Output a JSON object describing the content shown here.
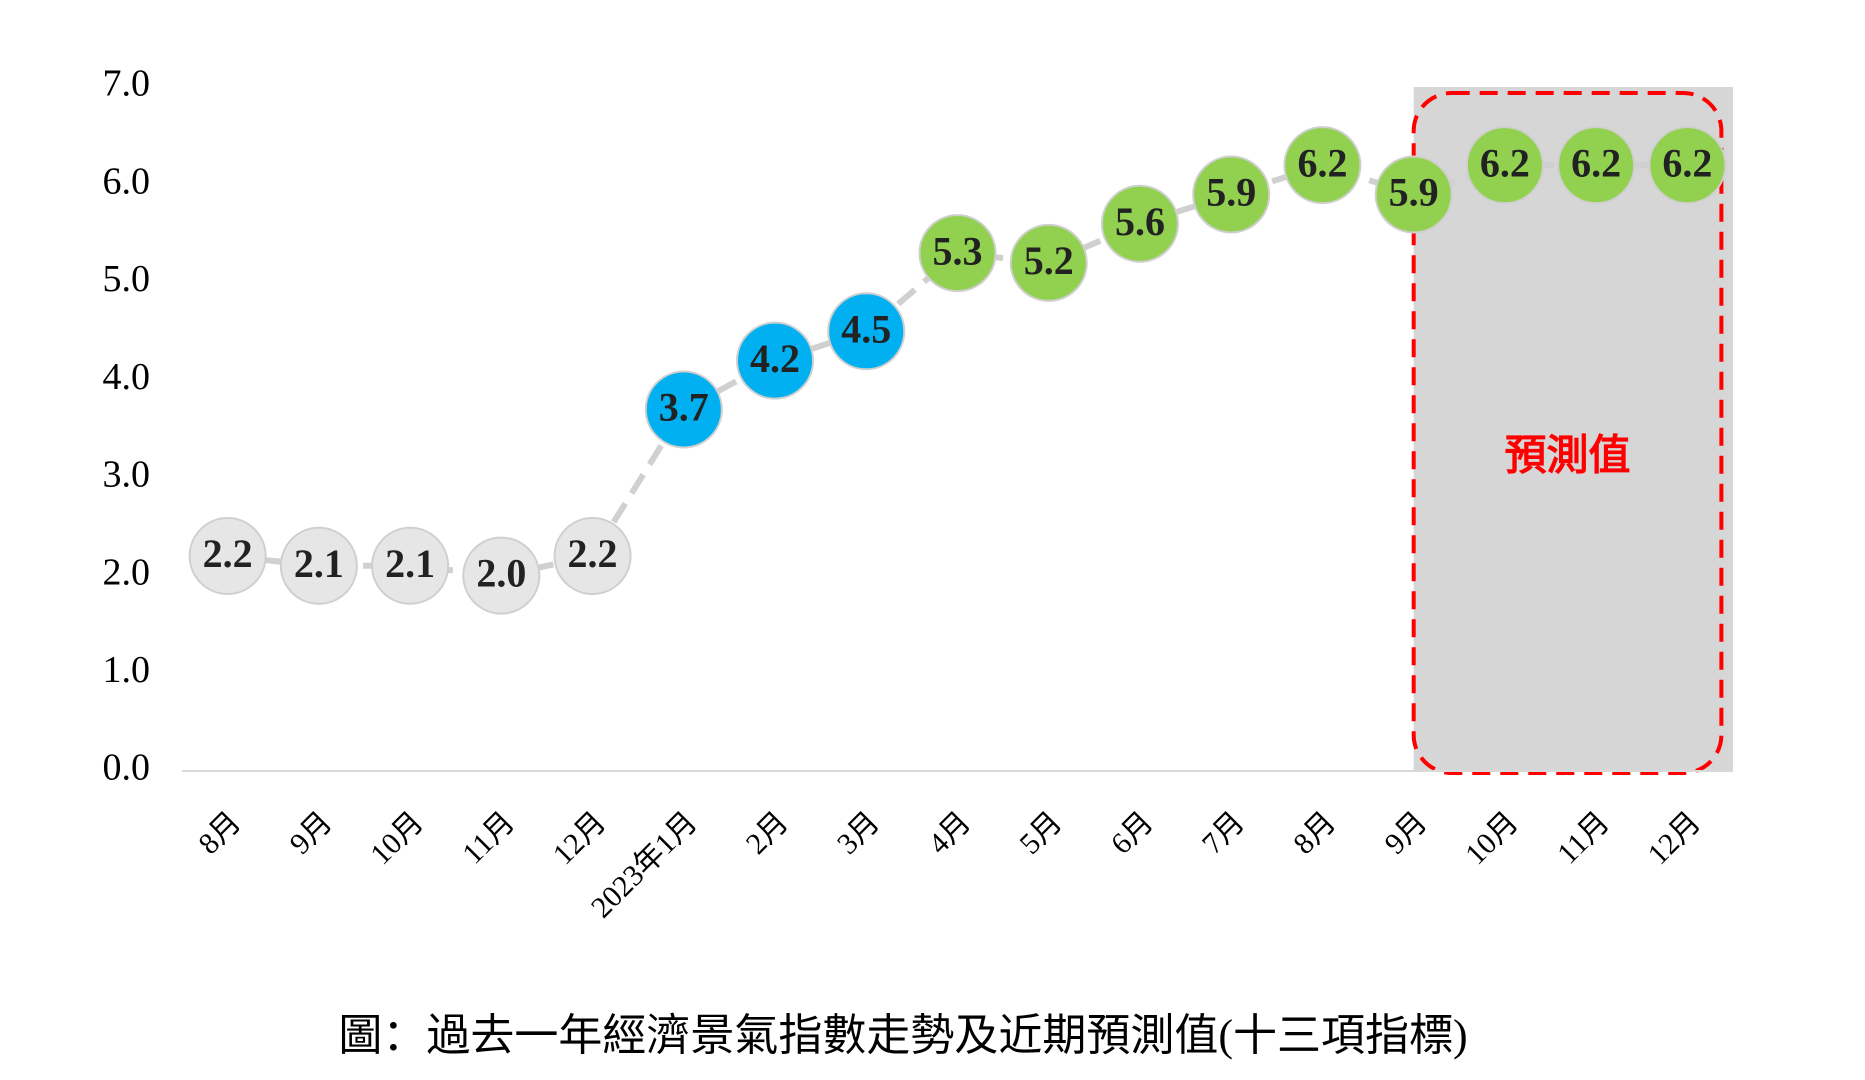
{
  "chart_data": {
    "type": "line",
    "caption": "圖：過去一年經濟景氣指數走勢及近期預測值(十三項指標)",
    "annotation": "預測值",
    "categories": [
      "8月",
      "9月",
      "10月",
      "11月",
      "12月",
      "2023年1月",
      "2月",
      "3月",
      "4月",
      "5月",
      "6月",
      "7月",
      "8月",
      "9月",
      "10月",
      "11月",
      "12月"
    ],
    "values": [
      2.2,
      2.1,
      2.1,
      2.0,
      2.2,
      3.7,
      4.2,
      4.5,
      5.3,
      5.2,
      5.6,
      5.9,
      6.2,
      5.9,
      6.2,
      6.2,
      6.2
    ],
    "value_labels": [
      "2.2",
      "2.1",
      "2.1",
      "2.0",
      "2.2",
      "3.7",
      "4.2",
      "4.5",
      "5.3",
      "5.2",
      "5.6",
      "5.9",
      "6.2",
      "5.9",
      "6.2",
      "6.2",
      "6.2"
    ],
    "point_colors": [
      "#e6e6e6",
      "#e6e6e6",
      "#e6e6e6",
      "#e6e6e6",
      "#e6e6e6",
      "#00b0f0",
      "#00b0f0",
      "#00b0f0",
      "#92d050",
      "#92d050",
      "#92d050",
      "#92d050",
      "#92d050",
      "#92d050",
      "#92d050",
      "#92d050",
      "#92d050"
    ],
    "line_color": "#d0d0d0",
    "forecast_range": [
      13,
      16
    ],
    "ylim": [
      0,
      7
    ],
    "yticks": [
      {
        "value": 0,
        "label": "0.0"
      },
      {
        "value": 1,
        "label": "1.0"
      },
      {
        "value": 2,
        "label": "2.0"
      },
      {
        "value": 3,
        "label": "3.0"
      },
      {
        "value": 4,
        "label": "4.0"
      },
      {
        "value": 5,
        "label": "5.0"
      },
      {
        "value": 6,
        "label": "6.0"
      },
      {
        "value": 7,
        "label": "7.0"
      }
    ]
  }
}
